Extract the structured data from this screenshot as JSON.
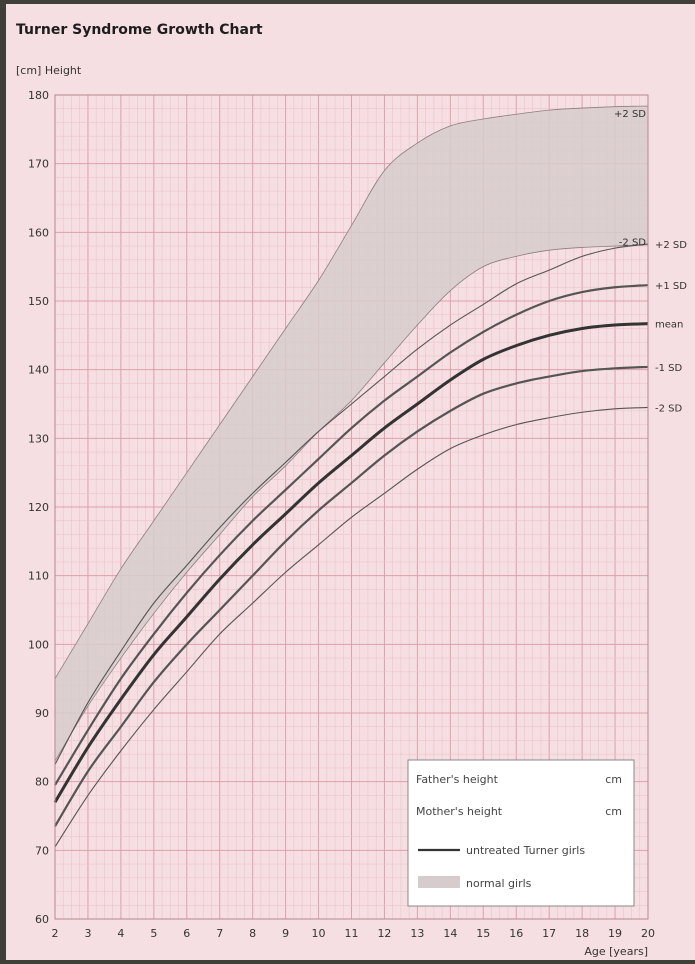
{
  "title": "Turner Syndrome Growth Chart",
  "colors": {
    "background": "#f6dfe2",
    "grid_minor": "#ecc4cb",
    "grid_major": "#de9fab",
    "band_fill": "#d7cccd",
    "curve": "#555555",
    "mean_curve": "#333333"
  },
  "chart_data": {
    "type": "line",
    "title": "Turner Syndrome Growth Chart",
    "xlabel": "Age [years]",
    "ylabel": "[cm] Height",
    "xlim": [
      2,
      20
    ],
    "ylim": [
      60,
      180
    ],
    "x_ticks": [
      "2",
      "3",
      "4",
      "5",
      "6",
      "7",
      "8",
      "9",
      "10",
      "11",
      "12",
      "13",
      "14",
      "15",
      "16",
      "17",
      "18",
      "19",
      "20"
    ],
    "y_ticks": [
      "60",
      "70",
      "80",
      "90",
      "100",
      "110",
      "120",
      "130",
      "140",
      "150",
      "160",
      "170",
      "180"
    ],
    "grid": true,
    "x": [
      2,
      3,
      4,
      5,
      6,
      7,
      8,
      9,
      10,
      11,
      12,
      13,
      14,
      15,
      16,
      17,
      18,
      19,
      20
    ],
    "normal_girls_band": {
      "name": "normal girls",
      "upper_label": "+2 SD",
      "lower_label": "-2 SD",
      "upper": [
        95,
        103,
        111,
        118,
        125,
        132,
        139,
        146,
        153,
        161,
        169,
        173,
        175.5,
        176.5,
        177.2,
        177.8,
        178.1,
        178.3,
        178.4
      ],
      "lower": [
        83,
        91,
        98,
        104.5,
        110.5,
        116,
        121.5,
        126,
        131,
        135.5,
        141,
        146.5,
        151.5,
        155,
        156.5,
        157.4,
        157.8,
        158,
        158.2
      ]
    },
    "series": [
      {
        "name": "+2 SD",
        "values": [
          82.5,
          91.5,
          99,
          106,
          111.5,
          117,
          122,
          126.5,
          131,
          135,
          139,
          143,
          146.5,
          149.5,
          152.5,
          154.5,
          156.5,
          157.7,
          158.3
        ]
      },
      {
        "name": "+1 SD",
        "values": [
          79.5,
          87.5,
          95,
          101.5,
          107.5,
          113,
          118,
          122.5,
          127,
          131.5,
          135.5,
          139,
          142.5,
          145.5,
          148,
          150,
          151.3,
          152,
          152.3
        ]
      },
      {
        "name": "mean",
        "values": [
          77,
          85,
          92,
          98.5,
          104,
          109.5,
          114.5,
          119,
          123.5,
          127.5,
          131.5,
          135,
          138.5,
          141.5,
          143.5,
          145,
          146,
          146.5,
          146.7
        ]
      },
      {
        "name": "-1 SD",
        "values": [
          73.5,
          81.5,
          88,
          94.5,
          100,
          105,
          110,
          115,
          119.5,
          123.5,
          127.5,
          131,
          134,
          136.5,
          138,
          139,
          139.8,
          140.2,
          140.4
        ]
      },
      {
        "name": "-2 SD",
        "values": [
          70.5,
          78,
          84.5,
          90.5,
          96,
          101.5,
          106,
          110.5,
          114.5,
          118.5,
          122,
          125.5,
          128.5,
          130.5,
          132,
          133,
          133.8,
          134.3,
          134.5
        ]
      }
    ],
    "legend": {
      "placement": "bottom-right",
      "fathers_height": {
        "label": "Father's height",
        "unit": "cm"
      },
      "mothers_height": {
        "label": "Mother's height",
        "unit": "cm"
      },
      "line_entry": "untreated Turner girls",
      "band_entry": "normal girls"
    }
  }
}
